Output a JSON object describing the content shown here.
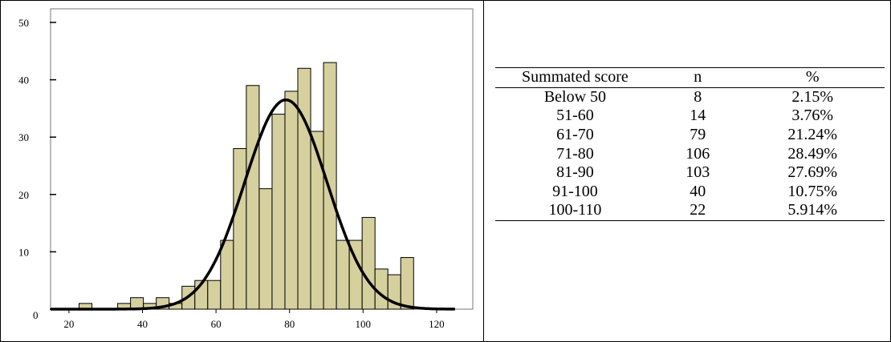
{
  "chart_data": {
    "type": "bar",
    "xlim": [
      15,
      125
    ],
    "ylim": [
      0,
      50
    ],
    "xticks": [
      "20",
      "40",
      "60",
      "80",
      "100",
      "120"
    ],
    "yticks": [
      "0",
      "10",
      "20",
      "30",
      "40",
      "50"
    ],
    "bin_width": 3.5,
    "bins": [
      {
        "x": 24.5,
        "count": 1
      },
      {
        "x": 35.0,
        "count": 1
      },
      {
        "x": 38.5,
        "count": 2
      },
      {
        "x": 42.0,
        "count": 1
      },
      {
        "x": 45.5,
        "count": 2
      },
      {
        "x": 49.0,
        "count": 1
      },
      {
        "x": 52.5,
        "count": 4
      },
      {
        "x": 56.0,
        "count": 5
      },
      {
        "x": 59.5,
        "count": 5
      },
      {
        "x": 63.0,
        "count": 12
      },
      {
        "x": 66.5,
        "count": 28
      },
      {
        "x": 70.0,
        "count": 39
      },
      {
        "x": 73.5,
        "count": 21
      },
      {
        "x": 77.0,
        "count": 34
      },
      {
        "x": 80.5,
        "count": 38
      },
      {
        "x": 84.0,
        "count": 42
      },
      {
        "x": 87.5,
        "count": 31
      },
      {
        "x": 91.0,
        "count": 43
      },
      {
        "x": 94.5,
        "count": 12
      },
      {
        "x": 98.0,
        "count": 12
      },
      {
        "x": 101.5,
        "count": 16
      },
      {
        "x": 105.0,
        "count": 7
      },
      {
        "x": 108.5,
        "count": 6
      },
      {
        "x": 112.0,
        "count": 9
      }
    ],
    "normal_curve": {
      "mean": 79,
      "sd": 11.2,
      "peak": 36.5
    },
    "bar_color": "#d6d09e",
    "bar_edge_color": "#000000",
    "curve_color": "#000000"
  },
  "table": {
    "headers": [
      "Summated score",
      "n",
      "%"
    ],
    "rows": [
      [
        "Below 50",
        "8",
        "2.15%"
      ],
      [
        "51-60",
        "14",
        "3.76%"
      ],
      [
        "61-70",
        "79",
        "21.24%"
      ],
      [
        "71-80",
        "106",
        "28.49%"
      ],
      [
        "81-90",
        "103",
        "27.69%"
      ],
      [
        "91-100",
        "40",
        "10.75%"
      ],
      [
        "100-110",
        "22",
        "5.914%"
      ]
    ]
  }
}
